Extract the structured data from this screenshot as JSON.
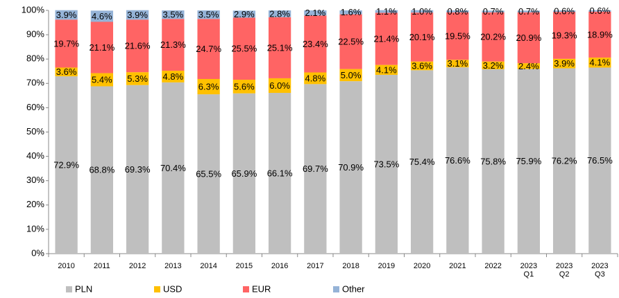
{
  "chart_data": {
    "type": "stacked_bar",
    "categories": [
      "2010",
      "2011",
      "2012",
      "2013",
      "2014",
      "2015",
      "2016",
      "2017",
      "2018",
      "2019",
      "2020",
      "2021",
      "2022",
      "2023\nQ1",
      "2023\nQ2",
      "2023\nQ3"
    ],
    "ylim": [
      0,
      100
    ],
    "yticks": [
      {
        "value": 0,
        "label": "0%"
      },
      {
        "value": 10,
        "label": "10%"
      },
      {
        "value": 20,
        "label": "20%"
      },
      {
        "value": 30,
        "label": "30%"
      },
      {
        "value": 40,
        "label": "40%"
      },
      {
        "value": 50,
        "label": "50%"
      },
      {
        "value": 60,
        "label": "60%"
      },
      {
        "value": 70,
        "label": "70%"
      },
      {
        "value": 80,
        "label": "80%"
      },
      {
        "value": 90,
        "label": "90%"
      },
      {
        "value": 100,
        "label": "100%"
      }
    ],
    "series": [
      {
        "name": "PLN",
        "color": "#bfbfbf",
        "values": [
          72.9,
          68.8,
          69.3,
          70.4,
          65.5,
          65.9,
          66.1,
          69.7,
          70.9,
          73.5,
          75.4,
          76.6,
          75.8,
          75.9,
          76.2,
          76.5
        ],
        "value_labels": [
          "72.9%",
          "68.8%",
          "69.3%",
          "70.4%",
          "65.5%",
          "65.9%",
          "66.1%",
          "69.7%",
          "70.9%",
          "73.5%",
          "75.4%",
          "76.6%",
          "75.8%",
          "75.9%",
          "76.2%",
          "76.5%"
        ]
      },
      {
        "name": "USD",
        "color": "#ffc000",
        "values": [
          3.6,
          5.4,
          5.3,
          4.8,
          6.3,
          5.6,
          6.0,
          4.8,
          5.0,
          4.1,
          3.6,
          3.1,
          3.2,
          2.4,
          3.9,
          4.1
        ],
        "value_labels": [
          "3.6%",
          "5.4%",
          "5.3%",
          "4.8%",
          "6.3%",
          "5.6%",
          "6.0%",
          "4.8%",
          "5.0%",
          "4.1%",
          "3.6%",
          "3.1%",
          "3.2%",
          "2.4%",
          "3.9%",
          "4.1%"
        ]
      },
      {
        "name": "EUR",
        "color": "#ff6464",
        "values": [
          19.7,
          21.1,
          21.6,
          21.3,
          24.7,
          25.5,
          25.1,
          23.4,
          22.5,
          21.4,
          20.1,
          19.5,
          20.2,
          20.9,
          19.3,
          18.9
        ],
        "value_labels": [
          "19.7%",
          "21.1%",
          "21.6%",
          "21.3%",
          "24.7%",
          "25.5%",
          "25.1%",
          "23.4%",
          "22.5%",
          "21.4%",
          "20.1%",
          "19.5%",
          "20.2%",
          "20.9%",
          "19.3%",
          "18.9%"
        ]
      },
      {
        "name": "Other",
        "color": "#95b3d7",
        "values": [
          3.9,
          4.6,
          3.9,
          3.5,
          3.5,
          2.9,
          2.8,
          2.1,
          1.6,
          1.1,
          1.0,
          0.8,
          0.7,
          0.7,
          0.6,
          0.6
        ],
        "value_labels": [
          "3.9%",
          "4.6%",
          "3.9%",
          "3.5%",
          "3.5%",
          "2.9%",
          "2.8%",
          "2.1%",
          "1.6%",
          "1.1%",
          "1.0%",
          "0.8%",
          "0.7%",
          "0.7%",
          "0.6%",
          "0.6%"
        ]
      }
    ]
  }
}
